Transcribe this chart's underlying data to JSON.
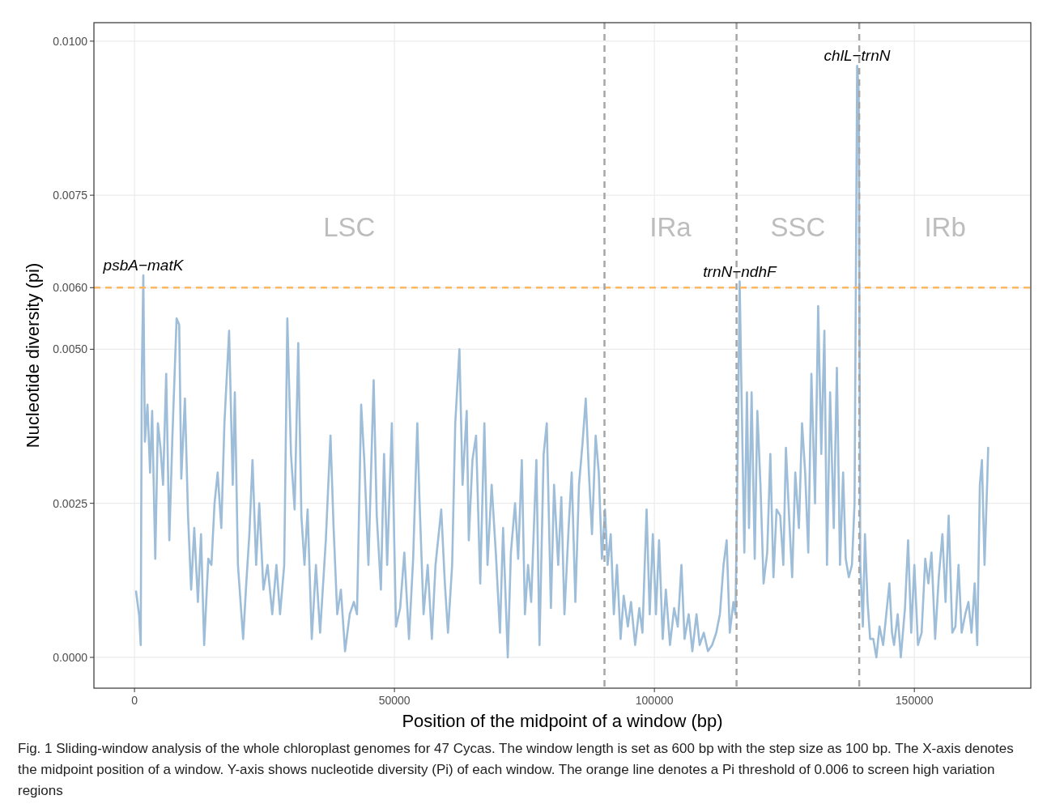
{
  "chart_data": {
    "type": "line",
    "xlabel": "Position of the midpoint of a window (bp)",
    "ylabel": "Nucleotide diversity (pi)",
    "xlim": [
      -7800,
      172400
    ],
    "xticks": [
      0,
      50000,
      100000,
      150000
    ],
    "ylim": [
      -0.0005,
      0.0103
    ],
    "yticks": [
      {
        "value": 0,
        "label": "0.0000"
      },
      {
        "value": 0.0025,
        "label": "0.0025"
      },
      {
        "value": 0.005,
        "label": "0.0050"
      },
      {
        "value": 0.006,
        "label": "0.0060"
      },
      {
        "value": 0.0075,
        "label": "0.0075"
      },
      {
        "value": 0.01,
        "label": "0.0100"
      }
    ],
    "grid": true,
    "marker": "none",
    "line_style": "solid",
    "x": [
      300,
      900,
      1200,
      1400,
      1700,
      2000,
      2500,
      3000,
      3400,
      4000,
      4500,
      5000,
      5500,
      6100,
      6700,
      7300,
      8100,
      8600,
      9000,
      9700,
      10300,
      10900,
      11500,
      12200,
      12800,
      13400,
      14200,
      14800,
      15400,
      16000,
      16700,
      17300,
      18200,
      18900,
      19300,
      19900,
      20900,
      21500,
      22100,
      22700,
      23400,
      24000,
      24800,
      25600,
      26500,
      27300,
      28000,
      28800,
      29400,
      30100,
      30800,
      31500,
      32100,
      32700,
      33300,
      34100,
      34900,
      35700,
      36800,
      37700,
      38300,
      39000,
      39700,
      40500,
      41400,
      42200,
      42800,
      43600,
      44200,
      45000,
      46000,
      46600,
      47400,
      48000,
      48600,
      49500,
      50300,
      51100,
      51900,
      52800,
      53600,
      54400,
      54800,
      55600,
      56400,
      57200,
      57900,
      59000,
      59700,
      60300,
      61100,
      61700,
      62500,
      63100,
      63900,
      64300,
      65000,
      65700,
      66500,
      67300,
      67900,
      68700,
      69500,
      70300,
      70900,
      71800,
      72400,
      73200,
      73800,
      74500,
      75100,
      75700,
      76300,
      77300,
      77900,
      78700,
      79300,
      80100,
      80700,
      81500,
      82100,
      82700,
      83500,
      84100,
      84800,
      85500,
      86200,
      86800,
      87400,
      88000,
      88700,
      89300,
      89900,
      90500,
      91000,
      91600,
      92200,
      92800,
      93500,
      94100,
      94900,
      95500,
      96300,
      97100,
      97700,
      98500,
      99100,
      99700,
      100300,
      100900,
      101600,
      102200,
      103000,
      103800,
      104500,
      105200,
      105800,
      106600,
      107300,
      108100,
      108700,
      109500,
      110300,
      111100,
      111900,
      112600,
      113300,
      113900,
      114500,
      115200,
      115600,
      116100,
      116400,
      116800,
      117300,
      117800,
      118200,
      118700,
      119300,
      119800,
      120400,
      121000,
      121700,
      122300,
      122900,
      123500,
      124200,
      124800,
      125300,
      125900,
      126500,
      127100,
      127800,
      128400,
      129000,
      129600,
      130200,
      130900,
      131500,
      132100,
      132700,
      133200,
      133800,
      134500,
      135100,
      135700,
      136300,
      136800,
      137400,
      138000,
      138500,
      139000,
      139300,
      139600,
      140100,
      140500,
      141000,
      141500,
      142100,
      142700,
      143300,
      144000,
      144600,
      145200,
      145700,
      146100,
      146800,
      147400,
      148200,
      148800,
      149400,
      150000,
      150700,
      151400,
      152100,
      152700,
      153300,
      154000,
      154700,
      155400,
      156000,
      156600,
      157300,
      157900,
      158500,
      159100,
      159800,
      160400,
      161000,
      161600,
      162100,
      162600,
      163000,
      163500,
      164000,
      164200
    ],
    "series": [
      {
        "color": "#9dbdd9",
        "values": [
          0.00107,
          0.00068,
          0.0002,
          0.0045,
          0.0062,
          0.0035,
          0.0041,
          0.003,
          0.004,
          0.0016,
          0.0038,
          0.0034,
          0.0028,
          0.0046,
          0.0019,
          0.0036,
          0.0055,
          0.0054,
          0.0029,
          0.0042,
          0.0023,
          0.0011,
          0.0021,
          0.0009,
          0.002,
          0.0002,
          0.0016,
          0.0015,
          0.0025,
          0.003,
          0.0021,
          0.0038,
          0.0053,
          0.0028,
          0.0043,
          0.0015,
          0.0003,
          0.0012,
          0.002,
          0.0032,
          0.0015,
          0.0025,
          0.0011,
          0.0015,
          0.0007,
          0.0015,
          0.0007,
          0.0015,
          0.0055,
          0.0033,
          0.0024,
          0.0051,
          0.0023,
          0.0015,
          0.0024,
          0.0003,
          0.0015,
          0.0004,
          0.0019,
          0.0036,
          0.0021,
          0.0007,
          0.0011,
          0.0001,
          0.0007,
          0.0009,
          0.0007,
          0.0041,
          0.0032,
          0.0015,
          0.0045,
          0.0023,
          0.0011,
          0.0033,
          0.0015,
          0.0038,
          0.0005,
          0.0008,
          0.0017,
          0.0003,
          0.0016,
          0.0038,
          0.0026,
          0.0007,
          0.0015,
          0.0003,
          0.0015,
          0.0024,
          0.0012,
          0.0004,
          0.0015,
          0.0038,
          0.005,
          0.0028,
          0.004,
          0.0019,
          0.0032,
          0.0036,
          0.0012,
          0.0038,
          0.0015,
          0.0028,
          0.0017,
          0.0004,
          0.0021,
          0,
          0.0017,
          0.0025,
          0.0016,
          0.0032,
          0.0007,
          0.0015,
          0.0009,
          0.0032,
          0.0002,
          0.0033,
          0.0038,
          0.0008,
          0.0028,
          0.0015,
          0.0026,
          0.0007,
          0.0021,
          0.003,
          0.0009,
          0.0028,
          0.0035,
          0.0042,
          0.003,
          0.002,
          0.0036,
          0.003,
          0.0016,
          0.0024,
          0.0015,
          0.002,
          0.0007,
          0.0015,
          0.0003,
          0.001,
          0.0005,
          0.0009,
          0.0002,
          0.0008,
          0.0004,
          0.0024,
          0.0007,
          0.002,
          0.0007,
          0.0019,
          0.0003,
          0.0011,
          0.0002,
          0.0008,
          0.0005,
          0.0015,
          0.0003,
          0.0007,
          0.0001,
          0.0007,
          0.0002,
          0.0004,
          0.0001,
          0.0002,
          0.0004,
          0.0007,
          0.0015,
          0.0019,
          0.0004,
          0.0009,
          0.0007,
          0.0038,
          0.0061,
          0.0041,
          0.0017,
          0.0043,
          0.0021,
          0.0043,
          0.0016,
          0.004,
          0.0028,
          0.0012,
          0.0017,
          0.0033,
          0.0013,
          0.0024,
          0.0023,
          0.0015,
          0.0034,
          0.0023,
          0.0013,
          0.003,
          0.0021,
          0.0038,
          0.003,
          0.0017,
          0.0046,
          0.0025,
          0.0057,
          0.0033,
          0.0053,
          0.0015,
          0.0043,
          0.0021,
          0.0047,
          0.0015,
          0.003,
          0.0016,
          0.0013,
          0.0015,
          0.0025,
          0.0096,
          0.0092,
          0.0015,
          0.0005,
          0.002,
          0.0009,
          0.0003,
          0.0003,
          0,
          0.0005,
          0.0002,
          0.0007,
          0.0012,
          0.0004,
          0.0002,
          0.0007,
          0,
          0.0008,
          0.0019,
          0.0004,
          0.0015,
          0.0002,
          0.0004,
          0.0016,
          0.0012,
          0.0017,
          0.0003,
          0.0013,
          0.002,
          0.0009,
          0.0023,
          0.0004,
          0.0005,
          0.0015,
          0.0004,
          0.0007,
          0.0009,
          0.0004,
          0.0012,
          0.0002,
          0.0028,
          0.0032,
          0.0015,
          0.0028,
          0.0034
        ]
      }
    ],
    "ref_lines": [
      {
        "axis": "y",
        "value": 0.006,
        "color": "#fdb863",
        "line_style": "dashed"
      },
      {
        "axis": "x",
        "value": 90400,
        "color": "#a6a6a6",
        "line_style": "dashed"
      },
      {
        "axis": "x",
        "value": 115800,
        "color": "#a6a6a6",
        "line_style": "dashed"
      },
      {
        "axis": "x",
        "value": 139400,
        "color": "#a6a6a6",
        "line_style": "dashed"
      }
    ],
    "annotations": [
      "LSC",
      "IRa",
      "SSC",
      "IRb",
      {
        "text": "psbA−matK",
        "x": 1700,
        "y": 0.0062
      },
      {
        "text": "trnN−ndhF",
        "x": 116400,
        "y": 0.0061
      },
      {
        "text": "chlL−trnN",
        "x": 139000,
        "y": 0.0096
      },
      "Fig. 1  Sliding-window analysis of the whole chloroplast genomes for 47 Cycas. The window length is set as 600 bp with the step size as 100 bp. The X-axis denotes the midpoint position of a window. Y-axis shows nucleotide diversity (Pi) of each window. The orange line denotes a Pi threshold of 0.006 to screen high variation regions"
    ]
  }
}
